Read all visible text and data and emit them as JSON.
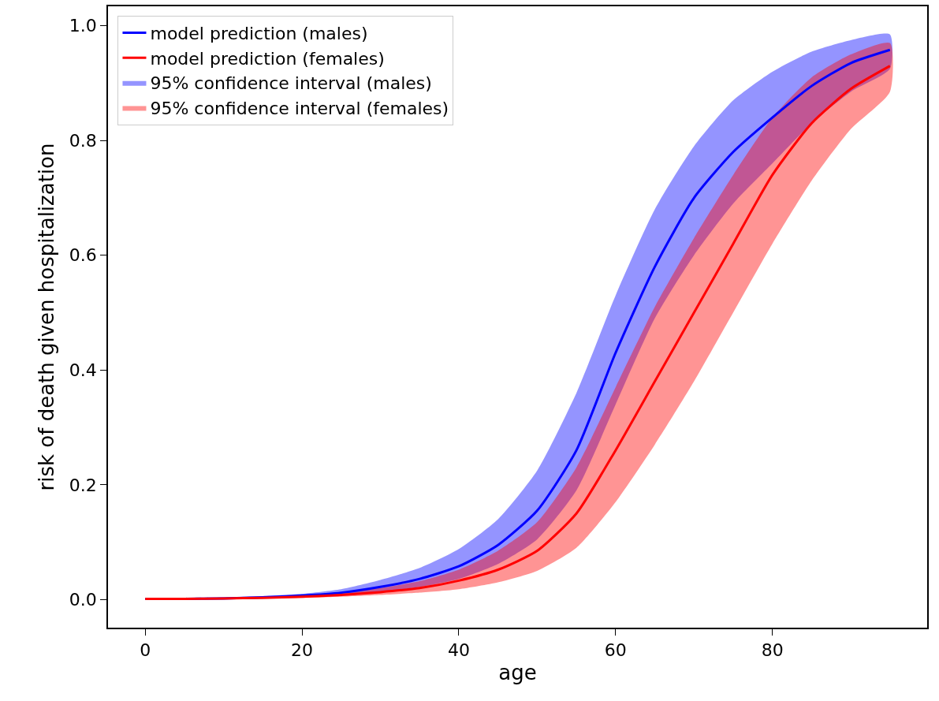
{
  "chart_data": {
    "type": "line",
    "xlabel": "age",
    "ylabel": "risk of death given hospitalization",
    "x": [
      0,
      5,
      10,
      15,
      20,
      25,
      30,
      35,
      40,
      45,
      50,
      55,
      60,
      65,
      70,
      75,
      80,
      85,
      90,
      95
    ],
    "series": [
      {
        "name": "model prediction (males)",
        "color": "#0000ff",
        "values": [
          0.001,
          0.001,
          0.002,
          0.004,
          0.007,
          0.012,
          0.022,
          0.036,
          0.058,
          0.095,
          0.155,
          0.26,
          0.43,
          0.58,
          0.7,
          0.78,
          0.84,
          0.895,
          0.935,
          0.958
        ]
      },
      {
        "name": "model prediction (females)",
        "color": "#ff0000",
        "values": [
          0.001,
          0.001,
          0.002,
          0.003,
          0.005,
          0.008,
          0.013,
          0.02,
          0.033,
          0.052,
          0.085,
          0.15,
          0.26,
          0.38,
          0.5,
          0.62,
          0.74,
          0.83,
          0.89,
          0.93
        ]
      },
      {
        "name": "95% confidence interval (males)",
        "color": "#0000ff",
        "values": [
          null,
          null,
          null,
          null,
          null,
          null,
          null,
          null,
          null,
          null,
          null,
          null,
          null,
          null,
          null,
          null,
          null,
          null,
          null,
          null
        ],
        "lower": [
          0,
          0,
          0.001,
          0.002,
          0.005,
          0.008,
          0.013,
          0.022,
          0.036,
          0.062,
          0.105,
          0.19,
          0.34,
          0.49,
          0.6,
          0.69,
          0.76,
          0.83,
          0.885,
          0.925
        ],
        "upper": [
          0.002,
          0.003,
          0.004,
          0.006,
          0.01,
          0.018,
          0.034,
          0.055,
          0.088,
          0.14,
          0.225,
          0.36,
          0.53,
          0.68,
          0.79,
          0.87,
          0.92,
          0.955,
          0.975,
          0.985
        ]
      },
      {
        "name": "95% confidence interval (females)",
        "color": "#ff0000",
        "values": [
          null,
          null,
          null,
          null,
          null,
          null,
          null,
          null,
          null,
          null,
          null,
          null,
          null,
          null,
          null,
          null,
          null,
          null,
          null,
          null
        ],
        "lower": [
          0,
          0,
          0.001,
          0.002,
          0.003,
          0.005,
          0.008,
          0.012,
          0.018,
          0.03,
          0.05,
          0.09,
          0.17,
          0.27,
          0.38,
          0.5,
          0.62,
          0.73,
          0.82,
          0.885
        ],
        "upper": [
          0.002,
          0.002,
          0.003,
          0.005,
          0.008,
          0.013,
          0.02,
          0.032,
          0.052,
          0.085,
          0.135,
          0.23,
          0.37,
          0.51,
          0.63,
          0.74,
          0.84,
          0.91,
          0.95,
          0.97
        ]
      }
    ],
    "xlim": [
      -4.75,
      99.75
    ],
    "xticks": [
      0,
      20,
      40,
      60,
      80
    ],
    "ylim": [
      -0.049,
      1.034
    ],
    "yticks": [
      {
        "value": 0,
        "label": "0.0"
      },
      {
        "value": 0.2,
        "label": "0.2"
      },
      {
        "value": 0.4,
        "label": "0.4"
      },
      {
        "value": 0.6,
        "label": "0.6"
      },
      {
        "value": 0.8,
        "label": "0.8"
      },
      {
        "value": 1,
        "label": "1.0"
      }
    ],
    "grid": false,
    "legend": "top left",
    "marker": "none",
    "line_style": "solid"
  }
}
